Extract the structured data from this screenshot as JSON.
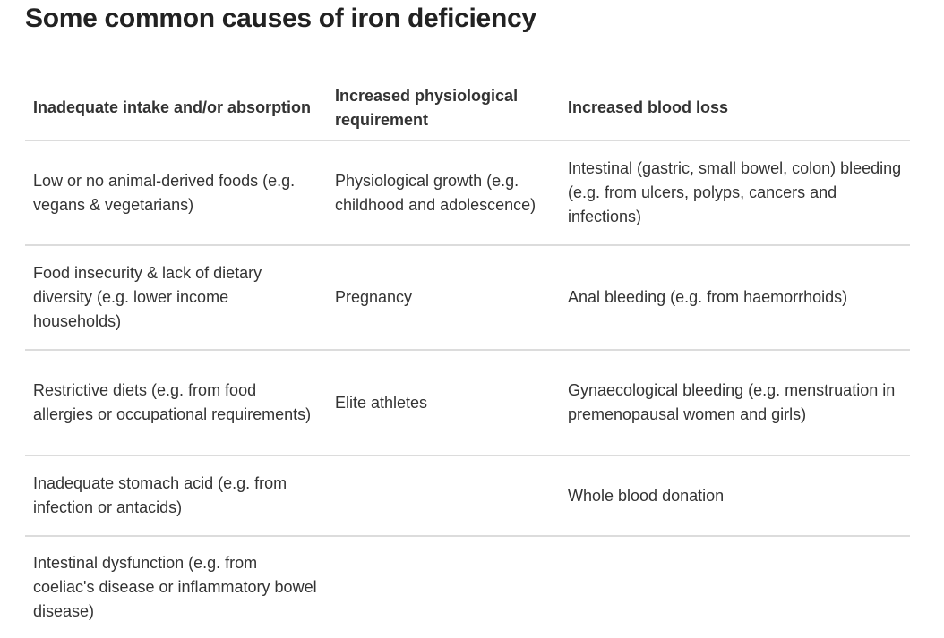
{
  "title": "Some common causes of iron deficiency",
  "table": {
    "headers": [
      "Inadequate intake and/or absorption",
      "Increased physiological requirement",
      "Increased blood loss"
    ],
    "rows": [
      [
        "Low or no animal-derived foods (e.g. vegans & vegetarians)",
        "Physiological growth (e.g. childhood and adolescence)",
        "Intestinal (gastric, small bowel, colon) bleeding (e.g. from ulcers, polyps, cancers and infections)"
      ],
      [
        "Food insecurity & lack of dietary diversity (e.g. lower income households)",
        "Pregnancy",
        "Anal bleeding (e.g. from haemorrhoids)"
      ],
      [
        "Restrictive diets (e.g. from food allergies or occupational requirements)",
        "Elite athletes",
        "Gynaecological bleeding (e.g. menstruation in premenopausal women and girls)"
      ],
      [
        "Inadequate stomach acid (e.g. from infection or antacids)",
        "",
        "Whole blood donation"
      ],
      [
        "Intestinal dysfunction (e.g. from coeliac's disease or inflammatory bowel disease)",
        "",
        ""
      ]
    ]
  }
}
